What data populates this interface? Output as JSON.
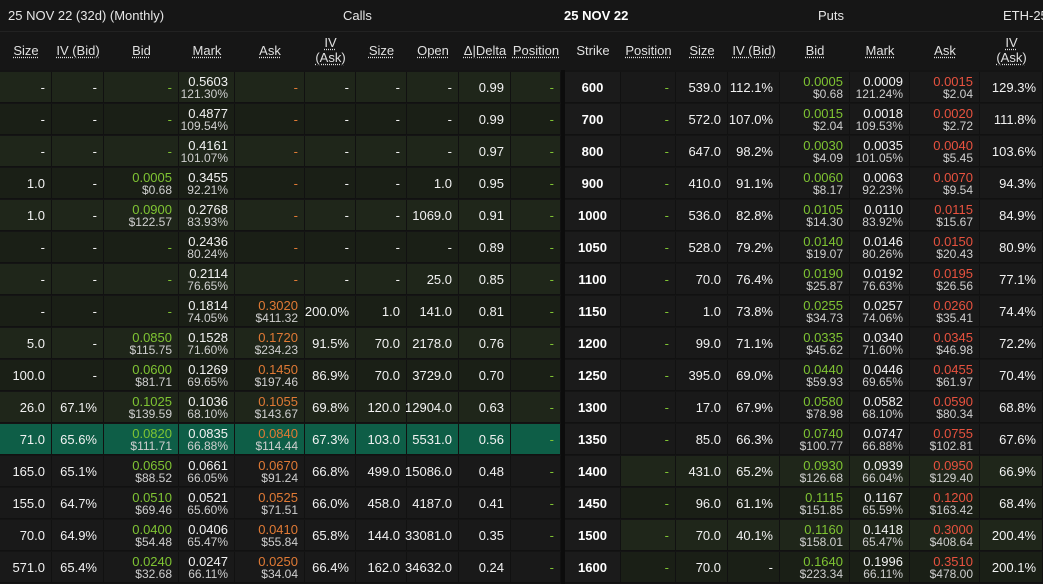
{
  "topbar": {
    "left": "25 NOV 22 (32d) (Monthly)",
    "calls": "Calls",
    "date": "25 NOV 22",
    "puts": "Puts",
    "right": "ETH-25"
  },
  "calls_headers": [
    "Size",
    "IV (Bid)",
    "Bid",
    "Mark",
    "Ask",
    "IV\n(Ask)",
    "Size",
    "Open",
    "Δ|Delta",
    "Position"
  ],
  "strike_header": "Strike",
  "puts_headers": [
    "Position",
    "Size",
    "IV (Bid)",
    "Bid",
    "Mark",
    "Ask",
    "IV\n(Ask)"
  ],
  "colors": {
    "atm_row": "#0e5e47",
    "itm_row": "#1f261a",
    "otm_row": "#191919",
    "bid": "#7fc433",
    "ask": "#e8523f"
  },
  "rows": [
    {
      "strike": "600",
      "c_size": "-",
      "c_ivbid": "-",
      "c_bid": "-",
      "c_bid_usd": "",
      "c_mark": "0.5603",
      "c_mark_pct": "121.30%",
      "c_ask": "-",
      "c_ask_usd": "",
      "c_ivask": "-",
      "c_size2": "-",
      "c_open": "-",
      "c_delta": "0.99",
      "c_pos": "-",
      "p_pos": "-",
      "p_size": "539.0",
      "p_ivbid": "112.1%",
      "p_bid": "0.0005",
      "p_bid_usd": "$0.68",
      "p_mark": "0.0009",
      "p_mark_pct": "121.24%",
      "p_ask": "0.0015",
      "p_ask_usd": "$2.04",
      "p_ivask": "129.3%"
    },
    {
      "strike": "700",
      "c_size": "-",
      "c_ivbid": "-",
      "c_bid": "-",
      "c_bid_usd": "",
      "c_mark": "0.4877",
      "c_mark_pct": "109.54%",
      "c_ask": "-",
      "c_ask_usd": "",
      "c_ivask": "-",
      "c_size2": "-",
      "c_open": "-",
      "c_delta": "0.99",
      "c_pos": "-",
      "p_pos": "-",
      "p_size": "572.0",
      "p_ivbid": "107.0%",
      "p_bid": "0.0015",
      "p_bid_usd": "$2.04",
      "p_mark": "0.0018",
      "p_mark_pct": "109.53%",
      "p_ask": "0.0020",
      "p_ask_usd": "$2.72",
      "p_ivask": "111.8%"
    },
    {
      "strike": "800",
      "c_size": "-",
      "c_ivbid": "-",
      "c_bid": "-",
      "c_bid_usd": "",
      "c_mark": "0.4161",
      "c_mark_pct": "101.07%",
      "c_ask": "-",
      "c_ask_usd": "",
      "c_ivask": "-",
      "c_size2": "-",
      "c_open": "-",
      "c_delta": "0.97",
      "c_pos": "-",
      "p_pos": "-",
      "p_size": "647.0",
      "p_ivbid": "98.2%",
      "p_bid": "0.0030",
      "p_bid_usd": "$4.09",
      "p_mark": "0.0035",
      "p_mark_pct": "101.05%",
      "p_ask": "0.0040",
      "p_ask_usd": "$5.45",
      "p_ivask": "103.6%"
    },
    {
      "strike": "900",
      "c_size": "1.0",
      "c_ivbid": "-",
      "c_bid": "0.0005",
      "c_bid_usd": "$0.68",
      "c_mark": "0.3455",
      "c_mark_pct": "92.21%",
      "c_ask": "-",
      "c_ask_usd": "",
      "c_ivask": "-",
      "c_size2": "-",
      "c_open": "1.0",
      "c_delta": "0.95",
      "c_pos": "-",
      "p_pos": "-",
      "p_size": "410.0",
      "p_ivbid": "91.1%",
      "p_bid": "0.0060",
      "p_bid_usd": "$8.17",
      "p_mark": "0.0063",
      "p_mark_pct": "92.23%",
      "p_ask": "0.0070",
      "p_ask_usd": "$9.54",
      "p_ivask": "94.3%"
    },
    {
      "strike": "1000",
      "c_size": "1.0",
      "c_ivbid": "-",
      "c_bid": "0.0900",
      "c_bid_usd": "$122.57",
      "c_mark": "0.2768",
      "c_mark_pct": "83.93%",
      "c_ask": "-",
      "c_ask_usd": "",
      "c_ivask": "-",
      "c_size2": "-",
      "c_open": "1069.0",
      "c_delta": "0.91",
      "c_pos": "-",
      "p_pos": "-",
      "p_size": "536.0",
      "p_ivbid": "82.8%",
      "p_bid": "0.0105",
      "p_bid_usd": "$14.30",
      "p_mark": "0.0110",
      "p_mark_pct": "83.92%",
      "p_ask": "0.0115",
      "p_ask_usd": "$15.67",
      "p_ivask": "84.9%"
    },
    {
      "strike": "1050",
      "c_size": "-",
      "c_ivbid": "-",
      "c_bid": "-",
      "c_bid_usd": "",
      "c_mark": "0.2436",
      "c_mark_pct": "80.24%",
      "c_ask": "-",
      "c_ask_usd": "",
      "c_ivask": "-",
      "c_size2": "-",
      "c_open": "-",
      "c_delta": "0.89",
      "c_pos": "-",
      "p_pos": "-",
      "p_size": "528.0",
      "p_ivbid": "79.2%",
      "p_bid": "0.0140",
      "p_bid_usd": "$19.07",
      "p_mark": "0.0146",
      "p_mark_pct": "80.26%",
      "p_ask": "0.0150",
      "p_ask_usd": "$20.43",
      "p_ivask": "80.9%"
    },
    {
      "strike": "1100",
      "c_size": "-",
      "c_ivbid": "-",
      "c_bid": "-",
      "c_bid_usd": "",
      "c_mark": "0.2114",
      "c_mark_pct": "76.65%",
      "c_ask": "-",
      "c_ask_usd": "",
      "c_ivask": "-",
      "c_size2": "-",
      "c_open": "25.0",
      "c_delta": "0.85",
      "c_pos": "-",
      "p_pos": "-",
      "p_size": "70.0",
      "p_ivbid": "76.4%",
      "p_bid": "0.0190",
      "p_bid_usd": "$25.87",
      "p_mark": "0.0192",
      "p_mark_pct": "76.63%",
      "p_ask": "0.0195",
      "p_ask_usd": "$26.56",
      "p_ivask": "77.1%"
    },
    {
      "strike": "1150",
      "c_size": "-",
      "c_ivbid": "-",
      "c_bid": "-",
      "c_bid_usd": "",
      "c_mark": "0.1814",
      "c_mark_pct": "74.05%",
      "c_ask": "0.3020",
      "c_ask_usd": "$411.32",
      "c_ivask": "200.0%",
      "c_size2": "1.0",
      "c_open": "141.0",
      "c_delta": "0.81",
      "c_pos": "-",
      "p_pos": "-",
      "p_size": "1.0",
      "p_ivbid": "73.8%",
      "p_bid": "0.0255",
      "p_bid_usd": "$34.73",
      "p_mark": "0.0257",
      "p_mark_pct": "74.06%",
      "p_ask": "0.0260",
      "p_ask_usd": "$35.41",
      "p_ivask": "74.4%"
    },
    {
      "strike": "1200",
      "c_size": "5.0",
      "c_ivbid": "-",
      "c_bid": "0.0850",
      "c_bid_usd": "$115.75",
      "c_mark": "0.1528",
      "c_mark_pct": "71.60%",
      "c_ask": "0.1720",
      "c_ask_usd": "$234.23",
      "c_ivask": "91.5%",
      "c_size2": "70.0",
      "c_open": "2178.0",
      "c_delta": "0.76",
      "c_pos": "-",
      "p_pos": "-",
      "p_size": "99.0",
      "p_ivbid": "71.1%",
      "p_bid": "0.0335",
      "p_bid_usd": "$45.62",
      "p_mark": "0.0340",
      "p_mark_pct": "71.60%",
      "p_ask": "0.0345",
      "p_ask_usd": "$46.98",
      "p_ivask": "72.2%"
    },
    {
      "strike": "1250",
      "c_size": "100.0",
      "c_ivbid": "-",
      "c_bid": "0.0600",
      "c_bid_usd": "$81.71",
      "c_mark": "0.1269",
      "c_mark_pct": "69.65%",
      "c_ask": "0.1450",
      "c_ask_usd": "$197.46",
      "c_ivask": "86.9%",
      "c_size2": "70.0",
      "c_open": "3729.0",
      "c_delta": "0.70",
      "c_pos": "-",
      "p_pos": "-",
      "p_size": "395.0",
      "p_ivbid": "69.0%",
      "p_bid": "0.0440",
      "p_bid_usd": "$59.93",
      "p_mark": "0.0446",
      "p_mark_pct": "69.65%",
      "p_ask": "0.0455",
      "p_ask_usd": "$61.97",
      "p_ivask": "70.4%"
    },
    {
      "strike": "1300",
      "c_size": "26.0",
      "c_ivbid": "67.1%",
      "c_bid": "0.1025",
      "c_bid_usd": "$139.59",
      "c_mark": "0.1036",
      "c_mark_pct": "68.10%",
      "c_ask": "0.1055",
      "c_ask_usd": "$143.67",
      "c_ivask": "69.8%",
      "c_size2": "120.0",
      "c_open": "12904.0",
      "c_delta": "0.63",
      "c_pos": "-",
      "p_pos": "-",
      "p_size": "17.0",
      "p_ivbid": "67.9%",
      "p_bid": "0.0580",
      "p_bid_usd": "$78.98",
      "p_mark": "0.0582",
      "p_mark_pct": "68.10%",
      "p_ask": "0.0590",
      "p_ask_usd": "$80.34",
      "p_ivask": "68.8%"
    },
    {
      "strike": "1350",
      "c_size": "71.0",
      "c_ivbid": "65.6%",
      "c_bid": "0.0820",
      "c_bid_usd": "$111.71",
      "c_mark": "0.0835",
      "c_mark_pct": "66.88%",
      "c_ask": "0.0840",
      "c_ask_usd": "$114.44",
      "c_ivask": "67.3%",
      "c_size2": "103.0",
      "c_open": "5531.0",
      "c_delta": "0.56",
      "c_pos": "-",
      "p_pos": "-",
      "p_size": "85.0",
      "p_ivbid": "66.3%",
      "p_bid": "0.0740",
      "p_bid_usd": "$100.77",
      "p_mark": "0.0747",
      "p_mark_pct": "66.88%",
      "p_ask": "0.0755",
      "p_ask_usd": "$102.81",
      "p_ivask": "67.6%"
    },
    {
      "strike": "1400",
      "c_size": "165.0",
      "c_ivbid": "65.1%",
      "c_bid": "0.0650",
      "c_bid_usd": "$88.52",
      "c_mark": "0.0661",
      "c_mark_pct": "66.05%",
      "c_ask": "0.0670",
      "c_ask_usd": "$91.24",
      "c_ivask": "66.8%",
      "c_size2": "499.0",
      "c_open": "15086.0",
      "c_delta": "0.48",
      "c_pos": "-",
      "p_pos": "-",
      "p_size": "431.0",
      "p_ivbid": "65.2%",
      "p_bid": "0.0930",
      "p_bid_usd": "$126.68",
      "p_mark": "0.0939",
      "p_mark_pct": "66.04%",
      "p_ask": "0.0950",
      "p_ask_usd": "$129.40",
      "p_ivask": "66.9%"
    },
    {
      "strike": "1450",
      "c_size": "155.0",
      "c_ivbid": "64.7%",
      "c_bid": "0.0510",
      "c_bid_usd": "$69.46",
      "c_mark": "0.0521",
      "c_mark_pct": "65.60%",
      "c_ask": "0.0525",
      "c_ask_usd": "$71.51",
      "c_ivask": "66.0%",
      "c_size2": "458.0",
      "c_open": "4187.0",
      "c_delta": "0.41",
      "c_pos": "-",
      "p_pos": "-",
      "p_size": "96.0",
      "p_ivbid": "61.1%",
      "p_bid": "0.1115",
      "p_bid_usd": "$151.85",
      "p_mark": "0.1167",
      "p_mark_pct": "65.59%",
      "p_ask": "0.1200",
      "p_ask_usd": "$163.42",
      "p_ivask": "68.4%"
    },
    {
      "strike": "1500",
      "c_size": "70.0",
      "c_ivbid": "64.9%",
      "c_bid": "0.0400",
      "c_bid_usd": "$54.48",
      "c_mark": "0.0406",
      "c_mark_pct": "65.47%",
      "c_ask": "0.0410",
      "c_ask_usd": "$55.84",
      "c_ivask": "65.8%",
      "c_size2": "144.0",
      "c_open": "33081.0",
      "c_delta": "0.35",
      "c_pos": "-",
      "p_pos": "-",
      "p_size": "70.0",
      "p_ivbid": "40.1%",
      "p_bid": "0.1160",
      "p_bid_usd": "$158.01",
      "p_mark": "0.1418",
      "p_mark_pct": "65.47%",
      "p_ask": "0.3000",
      "p_ask_usd": "$408.64",
      "p_ivask": "200.4%"
    },
    {
      "strike": "1600",
      "c_size": "571.0",
      "c_ivbid": "65.4%",
      "c_bid": "0.0240",
      "c_bid_usd": "$32.68",
      "c_mark": "0.0247",
      "c_mark_pct": "66.11%",
      "c_ask": "0.0250",
      "c_ask_usd": "$34.04",
      "c_ivask": "66.4%",
      "c_size2": "162.0",
      "c_open": "34632.0",
      "c_delta": "0.24",
      "c_pos": "-",
      "p_pos": "-",
      "p_size": "70.0",
      "p_ivbid": "-",
      "p_bid": "0.1640",
      "p_bid_usd": "$223.34",
      "p_mark": "0.1996",
      "p_mark_pct": "66.11%",
      "p_ask": "0.3510",
      "p_ask_usd": "$478.00",
      "p_ivask": "200.1%"
    }
  ]
}
